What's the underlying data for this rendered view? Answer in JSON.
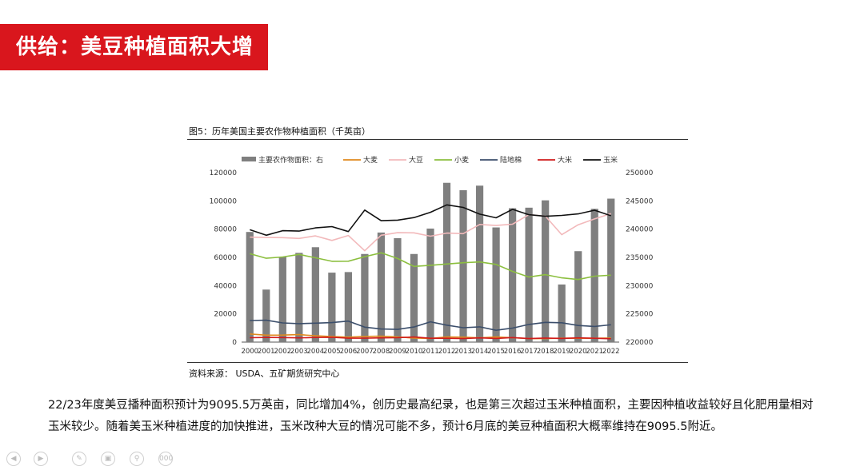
{
  "header": {
    "title": "供给：美豆种植面积大增"
  },
  "figure": {
    "caption": "图5：历年美国主要农作物种植面积（千英亩）",
    "source": "资料来源：   USDA、五矿期货研究中心"
  },
  "body": {
    "paragraph": "22/23年度美豆播种面积预计为9095.5万英亩，同比增加4%，创历史最高纪录，也是第三次超过玉米种植面积，主要因种植收益较好且化肥用量相对玉米较少。随着美玉米种植进度的加快推进，玉米改种大豆的情况可能不多，预计6月底的美豆种植面积大概率维持在9095.5附近。"
  },
  "nav": {
    "icons": [
      "prev-icon",
      "next-icon",
      "pen-icon",
      "screen-icon",
      "zoom-icon",
      "more-icon"
    ],
    "more_label": "000"
  },
  "chart_data": {
    "type": "bar",
    "categories": [
      "2000",
      "2001",
      "2002",
      "2003",
      "2004",
      "2005",
      "2006",
      "2007",
      "2008",
      "2009",
      "2010",
      "2011",
      "2012",
      "2013",
      "2014",
      "2015",
      "2016",
      "2017",
      "2018",
      "2019",
      "2020",
      "2021",
      "2022"
    ],
    "bar_series": {
      "name": "主要农作物面积：右",
      "axis": "right",
      "color": "#7f7f7f",
      "values": [
        239500,
        229300,
        235100,
        235800,
        236800,
        232300,
        232400,
        235600,
        239400,
        238400,
        235600,
        240100,
        248200,
        246900,
        247700,
        240300,
        243700,
        243800,
        245100,
        230200,
        236100,
        243600,
        245400
      ]
    },
    "series": [
      {
        "name": "大麦",
        "color": "#e08a1e",
        "values": [
          5800,
          4900,
          5000,
          5300,
          4500,
          3900,
          3500,
          4000,
          4200,
          3600,
          2900,
          2600,
          3700,
          3500,
          3000,
          3600,
          3100,
          2500,
          2500,
          2800,
          2700,
          2700,
          2900
        ]
      },
      {
        "name": "大豆",
        "color": "#f2b9bb",
        "values": [
          74300,
          74100,
          74000,
          73400,
          75200,
          72000,
          75500,
          64700,
          75700,
          77500,
          77400,
          75000,
          77200,
          76800,
          83300,
          82600,
          83500,
          90200,
          89200,
          76100,
          83100,
          87200,
          90955
        ]
      },
      {
        "name": "小麦",
        "color": "#8cbf3f",
        "values": [
          62600,
          59400,
          60300,
          62100,
          59700,
          57200,
          57300,
          60500,
          63200,
          59200,
          53600,
          54400,
          55300,
          56200,
          56800,
          55000,
          50100,
          46100,
          47800,
          45500,
          44300,
          46700,
          47400
        ]
      },
      {
        "name": "陆地棉",
        "color": "#3b4e6b",
        "values": [
          15300,
          15500,
          13600,
          13100,
          13400,
          13800,
          14900,
          10600,
          9300,
          9000,
          10700,
          14400,
          12000,
          10200,
          10800,
          8400,
          9900,
          12500,
          14000,
          13700,
          11800,
          11100,
          12300
        ]
      },
      {
        "name": "大米",
        "color": "#d11b1b",
        "values": [
          3100,
          3300,
          3200,
          3000,
          3300,
          3400,
          2800,
          2800,
          3000,
          3100,
          3600,
          2700,
          2700,
          2500,
          3000,
          2600,
          3200,
          2500,
          2900,
          2600,
          3000,
          2700,
          2400
        ]
      },
      {
        "name": "玉米",
        "color": "#111111",
        "values": [
          79600,
          75700,
          78900,
          78600,
          80900,
          81800,
          78300,
          93500,
          86000,
          86400,
          88200,
          91900,
          97200,
          95400,
          90600,
          88000,
          94000,
          90200,
          89100,
          89700,
          90800,
          93400,
          89500
        ]
      }
    ],
    "y_left": {
      "min": 0,
      "max": 120000,
      "ticks": [
        "0",
        "20000",
        "40000",
        "60000",
        "80000",
        "100000",
        "120000"
      ]
    },
    "y_right": {
      "min": 220000,
      "max": 250000,
      "ticks": [
        "220000",
        "225000",
        "230000",
        "235000",
        "240000",
        "245000",
        "250000"
      ]
    },
    "legend_position": "top",
    "grid": false
  }
}
